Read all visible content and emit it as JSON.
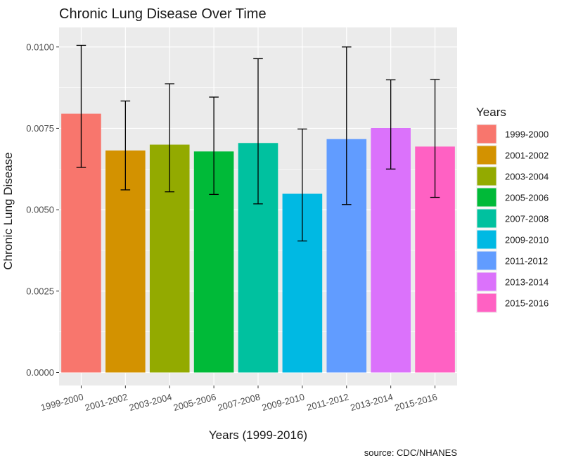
{
  "chart_data": {
    "type": "bar",
    "title": "Chronic Lung Disease Over Time",
    "xlabel": "Years (1999-2016)",
    "ylabel": "Chronic Lung Disease",
    "caption": "source: CDC/NHANES",
    "categories": [
      "1999-2000",
      "2001-2002",
      "2003-2004",
      "2005-2006",
      "2007-2008",
      "2009-2010",
      "2011-2012",
      "2013-2014",
      "2015-2016"
    ],
    "values": [
      0.00795,
      0.00682,
      0.007,
      0.00679,
      0.00705,
      0.00549,
      0.00717,
      0.00751,
      0.00694
    ],
    "error_lower": [
      0.0063,
      0.00561,
      0.00555,
      0.00547,
      0.00518,
      0.00404,
      0.00516,
      0.00625,
      0.00538
    ],
    "error_upper": [
      0.01005,
      0.00834,
      0.00887,
      0.00846,
      0.00964,
      0.00748,
      0.01,
      0.00899,
      0.009
    ],
    "colors": [
      "#F8766D",
      "#D39200",
      "#93AA00",
      "#00BA38",
      "#00C19F",
      "#00B9E3",
      "#619CFF",
      "#DB72FB",
      "#FF61C3"
    ],
    "ylim": [
      -0.0004,
      0.0106
    ],
    "yticks": [
      0.0,
      0.0025,
      0.005,
      0.0075,
      0.01
    ],
    "ytick_labels": [
      "0.0000",
      "0.0025",
      "0.0050",
      "0.0075",
      "0.0100"
    ],
    "grid": true,
    "legend": {
      "title": "Years",
      "position": "right",
      "entries": [
        "1999-2000",
        "2001-2002",
        "2003-2004",
        "2005-2006",
        "2007-2008",
        "2009-2010",
        "2011-2012",
        "2013-2014",
        "2015-2016"
      ]
    }
  }
}
